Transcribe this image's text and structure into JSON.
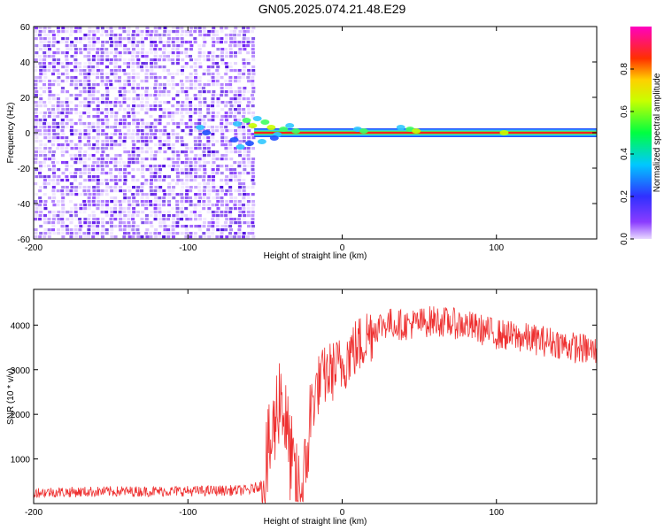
{
  "title": "GN05.2025.074.21.48.E29",
  "chart_data": [
    {
      "type": "heatmap",
      "xlabel": "Height of straight line (km)",
      "ylabel": "Frequency (Hz)",
      "xlim": [
        -200,
        165
      ],
      "ylim": [
        -60,
        60
      ],
      "xticks": [
        -200,
        -100,
        0,
        100
      ],
      "yticks": [
        -60,
        -40,
        -20,
        0,
        20,
        40,
        60
      ],
      "noise_region_x": [
        -200,
        -57
      ],
      "signal_line_freq_hz": 0,
      "signal_start_x": -72,
      "colorbar": {
        "label": "Normalized spectral amplitude",
        "range": [
          0,
          1
        ],
        "ticks": [
          "0.0",
          "0.2",
          "0.4",
          "0.6",
          "0.8"
        ]
      },
      "colors": {
        "noise": "#6a1cf0",
        "line_core": "#ff2020",
        "line_edge": "#2050ff"
      }
    },
    {
      "type": "line",
      "xlabel": "Height of straight line (km)",
      "ylabel": "SNR (10 * v/v)",
      "xlim": [
        -200,
        165
      ],
      "ylim": [
        0,
        4800
      ],
      "xticks": [
        -200,
        -100,
        0,
        100
      ],
      "yticks": [
        1000,
        2000,
        3000,
        4000
      ],
      "series": [
        {
          "color": "#ee3030",
          "x": [
            -200,
            -150,
            -100,
            -60,
            -52,
            -45,
            -40,
            -36,
            -30,
            -25,
            -20,
            -15,
            -10,
            -5,
            0,
            5,
            10,
            15,
            20,
            25,
            30,
            40,
            50,
            60,
            70,
            80,
            90,
            100,
            110,
            120,
            130,
            140,
            150,
            160,
            165
          ],
          "y": [
            250,
            270,
            280,
            300,
            420,
            1500,
            2600,
            1600,
            300,
            250,
            2200,
            2700,
            2900,
            3000,
            3100,
            3400,
            3500,
            3700,
            3900,
            4000,
            4050,
            4000,
            4050,
            4100,
            4050,
            4000,
            3900,
            3800,
            3750,
            3700,
            3650,
            3600,
            3500,
            3450,
            3400
          ]
        }
      ]
    }
  ]
}
